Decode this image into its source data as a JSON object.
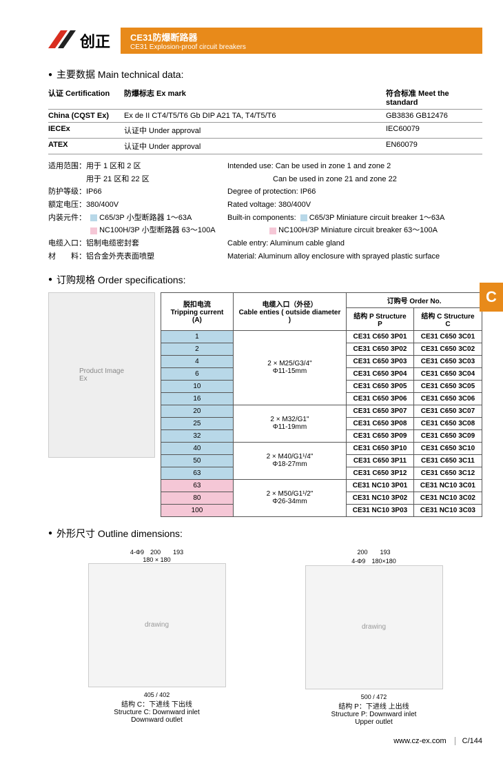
{
  "brand": {
    "cn": "创正",
    "logo_accent": "#d92e1f",
    "logo_dark": "#222"
  },
  "title": {
    "cn": "CE31防爆断路器",
    "en": "CE31 Explosion-proof circuit breakers",
    "bar_color": "#e88a1a"
  },
  "side_tab": "C",
  "section_main_data": "主要数据 Main technical data:",
  "cert_header": {
    "c1": "认证 Certification",
    "c2": "防爆标志   Ex mark",
    "c3": "符合标准  Meet the standard"
  },
  "cert_rows": [
    {
      "c1": "China (CQST Ex)",
      "c2": "Ex de II CT4/T5/T6 Gb    DIP A21 TA, T4/T5/T6",
      "c3": "GB3836   GB12476"
    },
    {
      "c1": "IECEx",
      "c2": "认证中   Under approval",
      "c3": "IEC60079"
    },
    {
      "c1": "ATEX",
      "c2": "认证中   Under approval",
      "c3": "EN60079"
    }
  ],
  "cn_data": [
    "适用范围：用于 1 区和 2 区",
    "　　　　　用于 21 区和 22 区",
    "防护等级：IP66",
    "额定电压：380/400V",
    "内装元件：",
    "电缆入口：铝制电缆密封套",
    "材　　料：铝合金外壳表面喷塑"
  ],
  "cn_components": [
    {
      "color": "#b8d8e8",
      "text": "C65/3P 小型断路器 1～63A"
    },
    {
      "color": "#f5c7d6",
      "text": "NC100H/3P 小型断路器 63～100A"
    }
  ],
  "en_data": [
    "Intended use: Can be used in zone 1 and zone 2",
    "　　　　　　Can be used in zone 21 and zone 22",
    "Degree of protection: IP66",
    "Rated voltage: 380/400V",
    "Built-in components:",
    "Cable entry: Aluminum cable gland",
    "Material: Aluminum alloy enclosure with sprayed plastic surface"
  ],
  "en_components": [
    {
      "color": "#b8d8e8",
      "text": "C65/3P Miniature circuit breaker 1～63A"
    },
    {
      "color": "#f5c7d6",
      "text": "NC100H/3P Miniature circuit breaker 63～100A"
    }
  ],
  "section_order": "订购规格 Order specifications:",
  "order_headers": {
    "trip_cn": "脱扣电流",
    "trip_en": "Tripping current (A)",
    "cable_cn": "电缆入口（外径）",
    "cable_en": "Cable enties ( outside diameter )",
    "order_cn": "订购号  Order No.",
    "p_cn": "结构 P  Structure P",
    "c_cn": "结构 C  Structure C"
  },
  "order_rows": [
    {
      "a": "1",
      "cable": "2 × M25/G3/4\"\nΦ11-15mm",
      "span": 6,
      "p": "CE31  C650  3P01",
      "c": "CE31  C650  3C01",
      "bg": "#b8d8e8"
    },
    {
      "a": "2",
      "p": "CE31  C650  3P02",
      "c": "CE31  C650  3C02",
      "bg": "#b8d8e8"
    },
    {
      "a": "4",
      "p": "CE31  C650  3P03",
      "c": "CE31  C650  3C03",
      "bg": "#b8d8e8"
    },
    {
      "a": "6",
      "p": "CE31  C650  3P04",
      "c": "CE31  C650  3C04",
      "bg": "#b8d8e8"
    },
    {
      "a": "10",
      "p": "CE31  C650  3P05",
      "c": "CE31  C650  3C05",
      "bg": "#b8d8e8"
    },
    {
      "a": "16",
      "p": "CE31  C650  3P06",
      "c": "CE31  C650  3C06",
      "bg": "#b8d8e8"
    },
    {
      "a": "20",
      "cable": "2 × M32/G1\"\nΦ11-19mm",
      "span": 3,
      "p": "CE31  C650  3P07",
      "c": "CE31  C650  3C07",
      "bg": "#b8d8e8"
    },
    {
      "a": "25",
      "p": "CE31  C650  3P08",
      "c": "CE31  C650  3C08",
      "bg": "#b8d8e8"
    },
    {
      "a": "32",
      "p": "CE31  C650  3P09",
      "c": "CE31  C650  3C09",
      "bg": "#b8d8e8"
    },
    {
      "a": "40",
      "cable": "2 × M40/G1¹/4\"\nΦ18-27mm",
      "span": 3,
      "p": "CE31  C650  3P10",
      "c": "CE31  C650  3C10",
      "bg": "#b8d8e8"
    },
    {
      "a": "50",
      "p": "CE31  C650  3P11",
      "c": "CE31  C650  3C11",
      "bg": "#b8d8e8"
    },
    {
      "a": "63",
      "p": "CE31  C650  3P12",
      "c": "CE31  C650  3C12",
      "bg": "#b8d8e8"
    },
    {
      "a": "63",
      "cable": "2 × M50/G1¹/2\"\nΦ26-34mm",
      "span": 3,
      "p": "CE31  NC10  3P01",
      "c": "CE31  NC10  3C01",
      "bg": "#f5c7d6"
    },
    {
      "a": "80",
      "p": "CE31  NC10  3P02",
      "c": "CE31  NC10  3C02",
      "bg": "#f5c7d6"
    },
    {
      "a": "100",
      "p": "CE31  NC10  3P03",
      "c": "CE31  NC10  3C03",
      "bg": "#f5c7d6"
    }
  ],
  "section_outline": "外形尺寸 Outline dimensions:",
  "outline": {
    "c": {
      "dim_w": "200",
      "dim_inner": "180 × 180",
      "dim_side": "193",
      "dim_h": "405",
      "dim_h2": "402",
      "label_cn": "结构 C：下进线 下出线",
      "label_en1": "Structure C: Downward inlet",
      "label_en2": "Downward outlet"
    },
    "p": {
      "dim_w": "200",
      "dim_side": "193",
      "dim_h": "500",
      "dim_h2": "472",
      "dim_inner": "180×180",
      "bolt": "4-Φ9",
      "label_cn": "结构 P：下进线 上出线",
      "label_en1": "Structure P: Downward inlet",
      "label_en2": "Upper outlet"
    },
    "bolt": "4-Φ9"
  },
  "footer": {
    "url": "www.cz-ex.com",
    "page": "C/144"
  }
}
